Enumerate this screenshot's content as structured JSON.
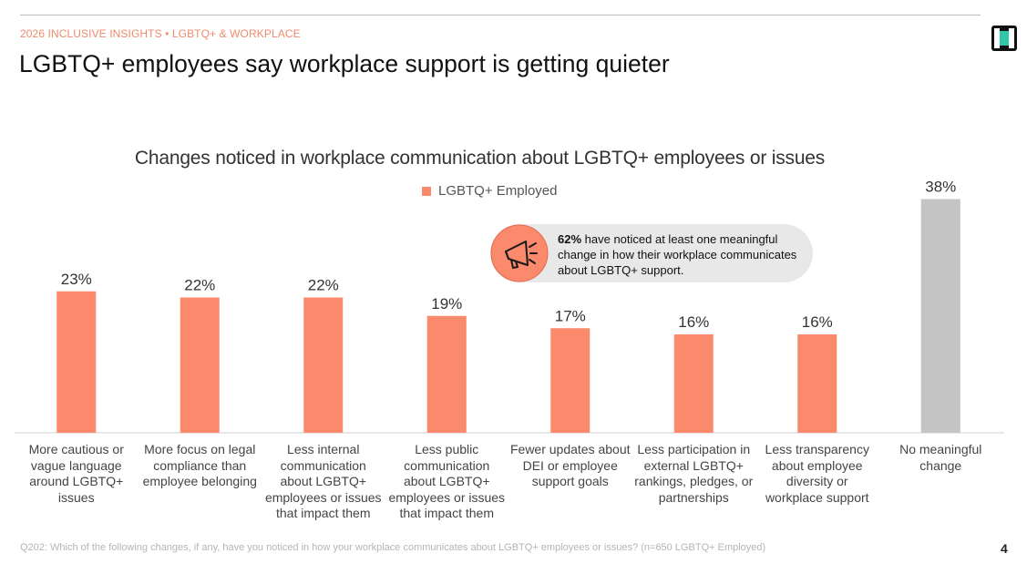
{
  "header": {
    "eyebrow": "2026 INCLUSIVE INSIGHTS • LGBTQ+ & WORKPLACE",
    "headline": "LGBTQ+ employees say workplace support is getting quieter"
  },
  "callout": {
    "highlight": "62%",
    "text": " have noticed at least one meaningful change in how their workplace communicates about LGBTQ+ support.",
    "icon": "megaphone-icon"
  },
  "colors": {
    "accent": "#fb896b",
    "neutral": "#c4c4c4",
    "eyebrow": "#f08a6c",
    "callout_bg": "#e8e8e8"
  },
  "chart_data": {
    "type": "bar",
    "title": "Changes noticed in workplace communication about LGBTQ+ employees or issues",
    "legend": [
      "LGBTQ+ Employed"
    ],
    "legend_position": "top-center",
    "grid": false,
    "ylim": [
      0,
      40
    ],
    "categories": [
      "More cautious or vague language around LGBTQ+ issues",
      "More focus on legal compliance than employee belonging",
      "Less internal communication about LGBTQ+ employees or issues that impact them",
      "Less public communication about LGBTQ+ employees or issues that impact them",
      "Fewer updates about DEI or employee support goals",
      "Less participation in external LGBTQ+ rankings, pledges, or partnerships",
      "Less transparency about employee diversity or workplace support",
      "No meaningful change"
    ],
    "values": [
      23,
      22,
      22,
      19,
      17,
      16,
      16,
      38
    ],
    "data_labels": [
      "23%",
      "22%",
      "22%",
      "19%",
      "17%",
      "16%",
      "16%",
      "38%"
    ],
    "bar_colors": [
      "#fb896b",
      "#fb896b",
      "#fb896b",
      "#fb896b",
      "#fb896b",
      "#fb896b",
      "#fb896b",
      "#c4c4c4"
    ],
    "category_lines": [
      [
        "More cautious or",
        "vague language",
        "around LGBTQ+",
        "issues"
      ],
      [
        "More focus on legal",
        "compliance than",
        "employee belonging"
      ],
      [
        "Less internal",
        "communication",
        "about LGBTQ+",
        "employees or issues",
        "that impact them"
      ],
      [
        "Less public",
        "communication",
        "about LGBTQ+",
        "employees or issues",
        "that impact them"
      ],
      [
        "Fewer updates about",
        "DEI or employee",
        "support goals"
      ],
      [
        "Less participation in",
        "external LGBTQ+",
        "rankings, pledges, or",
        "partnerships"
      ],
      [
        "Less transparency",
        "about employee",
        "diversity or",
        "workplace support"
      ],
      [
        "No meaningful",
        "change"
      ]
    ]
  },
  "footer": {
    "footnote": "Q202: Which of the following changes, if any, have you noticed in how your workplace communicates about LGBTQ+ employees or issues? (n=650 LGBTQ+ Employed)",
    "page_number": "4"
  }
}
